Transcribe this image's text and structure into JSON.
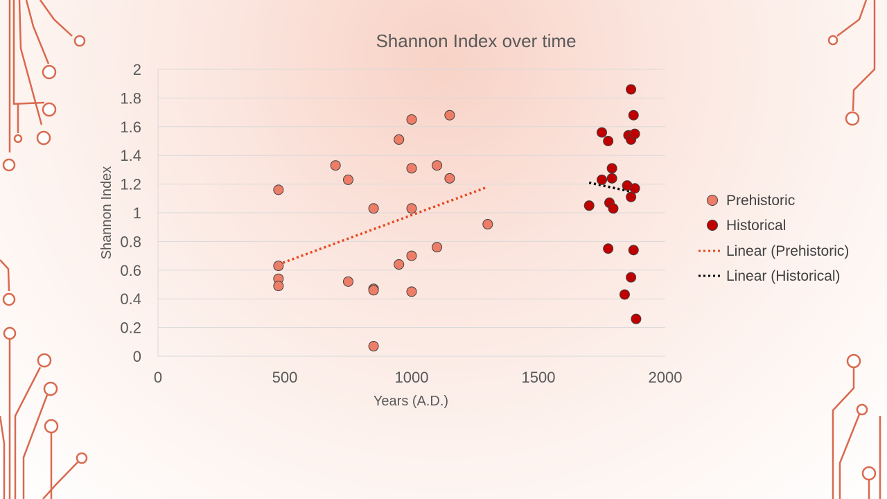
{
  "colors": {
    "prehistoric_marker": "#ee7d68",
    "historical_marker": "#c00000",
    "marker_outline": "#404040",
    "prehistoric_trend": "#e8471f",
    "historical_trend": "#000000",
    "circuit": "#d9694e"
  },
  "decoration": {
    "icon": "circuit-board-traces"
  },
  "chart_data": {
    "type": "scatter",
    "title": "Shannon Index over time",
    "xlabel": "Years (A.D.)",
    "ylabel": "Shannon Index",
    "xlim": [
      0,
      2000
    ],
    "ylim": [
      0,
      2
    ],
    "xticks": [
      0,
      500,
      1000,
      1500,
      2000
    ],
    "yticks": [
      0,
      0.2,
      0.4,
      0.6,
      0.8,
      1,
      1.2,
      1.4,
      1.6,
      1.8,
      2
    ],
    "ytick_labels": [
      "0",
      "0.2",
      "0.4",
      "0.6",
      "0.8",
      "1",
      "1.2",
      "1.4",
      "1.6",
      "1.8",
      "2"
    ],
    "grid": "horizontal",
    "legend_position": "right",
    "series": [
      {
        "name": "Prehistoric",
        "points": [
          [
            475,
            1.16
          ],
          [
            475,
            0.63
          ],
          [
            475,
            0.54
          ],
          [
            475,
            0.49
          ],
          [
            700,
            1.33
          ],
          [
            750,
            1.23
          ],
          [
            750,
            0.52
          ],
          [
            850,
            1.03
          ],
          [
            850,
            0.47
          ],
          [
            850,
            0.46
          ],
          [
            850,
            0.07
          ],
          [
            950,
            1.51
          ],
          [
            950,
            0.64
          ],
          [
            1000,
            1.65
          ],
          [
            1000,
            1.31
          ],
          [
            1000,
            1.03
          ],
          [
            1000,
            0.7
          ],
          [
            1000,
            0.45
          ],
          [
            1100,
            1.33
          ],
          [
            1100,
            0.76
          ],
          [
            1150,
            1.68
          ],
          [
            1150,
            1.24
          ],
          [
            1300,
            0.92
          ]
        ]
      },
      {
        "name": "Historical",
        "points": [
          [
            1700,
            1.05
          ],
          [
            1750,
            1.56
          ],
          [
            1750,
            1.23
          ],
          [
            1775,
            1.5
          ],
          [
            1775,
            0.75
          ],
          [
            1780,
            1.07
          ],
          [
            1790,
            1.31
          ],
          [
            1790,
            1.24
          ],
          [
            1795,
            1.03
          ],
          [
            1840,
            0.43
          ],
          [
            1850,
            1.19
          ],
          [
            1855,
            1.54
          ],
          [
            1865,
            1.86
          ],
          [
            1865,
            1.51
          ],
          [
            1865,
            1.11
          ],
          [
            1865,
            0.55
          ],
          [
            1875,
            1.68
          ],
          [
            1875,
            0.74
          ],
          [
            1880,
            1.55
          ],
          [
            1880,
            1.17
          ],
          [
            1885,
            0.26
          ]
        ]
      }
    ],
    "trendlines": [
      {
        "name": "Linear (Prehistoric)",
        "type": "linear",
        "x": [
          475,
          1300
        ],
        "y": [
          0.64,
          1.18
        ]
      },
      {
        "name": "Linear (Historical)",
        "type": "linear",
        "x": [
          1700,
          1885
        ],
        "y": [
          1.21,
          1.14
        ]
      }
    ]
  }
}
